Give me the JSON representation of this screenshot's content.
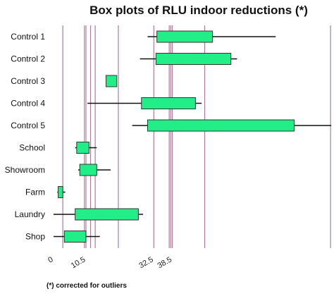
{
  "chart_data": {
    "type": "box",
    "title": "Box plots of RLU indoor reductions (*)",
    "footnote": "(*) corrected for outliers",
    "xlim": [
      0,
      90
    ],
    "x_ticks": [
      {
        "value": 0,
        "label": "0"
      },
      {
        "value": 10.5,
        "label": "10.5"
      },
      {
        "value": 32.5,
        "label": "32.5"
      },
      {
        "value": 38.5,
        "label": "38.5"
      }
    ],
    "reference_lines": [
      3,
      10,
      10.5,
      12,
      13.5,
      21,
      32.5,
      37.5,
      38,
      38.5,
      49,
      89.8
    ],
    "colors": {
      "box_fill": "#22ee88",
      "box_stroke": "#333333",
      "whisker": "#111111",
      "reference_line": "#b07a9a"
    },
    "categories": [
      "Control 1",
      "Control 2",
      "Control 3",
      "Control 4",
      "Control 5",
      "School",
      "Showroom",
      "Farm",
      "Laundry",
      "Shop"
    ],
    "boxes": [
      {
        "min": 30.5,
        "q1": 33.5,
        "q3": 51.5,
        "max": 72
      },
      {
        "min": 28,
        "q1": 33.2,
        "q3": 57.5,
        "max": 59.5
      },
      {
        "min": 17,
        "q1": 17,
        "q3": 20.5,
        "max": 20.5
      },
      {
        "min": 11,
        "q1": 28.5,
        "q3": 46,
        "max": 48
      },
      {
        "min": 25.5,
        "q1": 30.5,
        "q3": 78,
        "max": 90
      },
      {
        "min": 7,
        "q1": 7.5,
        "q3": 11.5,
        "max": 14
      },
      {
        "min": 8,
        "q1": 8.5,
        "q3": 14,
        "max": 18.5
      },
      {
        "min": 1.2,
        "q1": 1.5,
        "q3": 3,
        "max": 3.8
      },
      {
        "min": 0,
        "q1": 7,
        "q3": 27.5,
        "max": 29
      },
      {
        "min": 0,
        "q1": 3.5,
        "q3": 10.5,
        "max": 15
      }
    ]
  }
}
